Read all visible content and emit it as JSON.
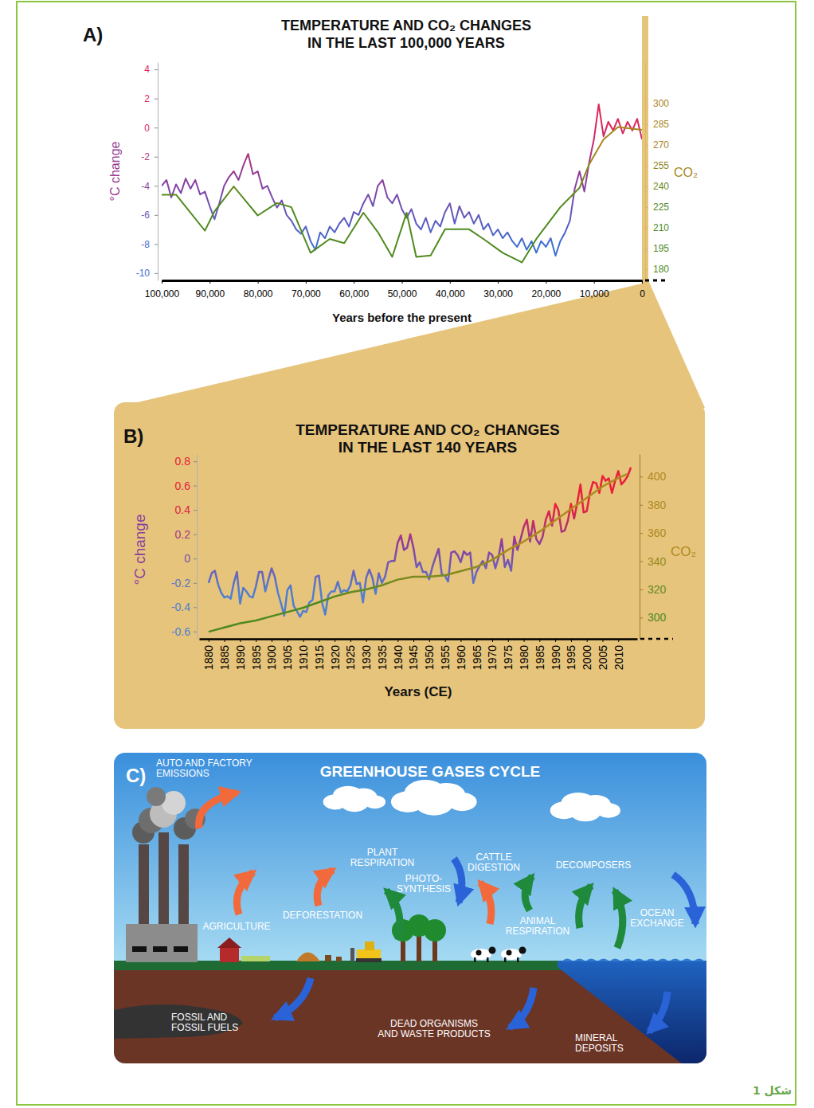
{
  "chart_data": [
    {
      "type": "line",
      "label": "A)",
      "title": "TEMPERATURE AND CO₂ CHANGES IN THE LAST 100,000 YEARS",
      "x_label": "Years before the present",
      "y_label": "°C change",
      "y2_label": "CO₂",
      "xlim": [
        100000,
        0
      ],
      "xticks": [
        {
          "value": 100000,
          "label": "100,000"
        },
        {
          "value": 90000,
          "label": "90,000"
        },
        {
          "value": 80000,
          "label": "80,000"
        },
        {
          "value": 70000,
          "label": "70,000"
        },
        {
          "value": 60000,
          "label": "60,000"
        },
        {
          "value": 50000,
          "label": "50,000"
        },
        {
          "value": 40000,
          "label": "40,000"
        },
        {
          "value": 30000,
          "label": "30,000"
        },
        {
          "value": 20000,
          "label": "20,000"
        },
        {
          "value": 10000,
          "label": "10,000"
        },
        0
      ],
      "ylim": [
        -10.5,
        4.5
      ],
      "yticks": [
        4,
        2,
        0,
        -2,
        -4,
        -6,
        -8,
        -10
      ],
      "y2lim": [
        172,
        330
      ],
      "y2ticks": [
        300,
        285,
        270,
        255,
        240,
        225,
        210,
        195,
        180
      ],
      "series": [
        {
          "color": "#8a3fa0",
          "x": [
            100000,
            99000,
            98000,
            97000,
            96000,
            95000,
            94000,
            93000,
            92000,
            91000,
            90000,
            89000,
            88000,
            87000,
            86000,
            85000,
            84000,
            83000,
            82000,
            81000,
            80000,
            79000,
            78000,
            77000,
            76000,
            75000,
            74000,
            73000,
            72000,
            71000,
            70000,
            69000,
            68000,
            67000,
            66000,
            65000,
            64000,
            63000,
            62000,
            61000,
            60000,
            59000,
            58000,
            57000,
            56000,
            55000,
            54000,
            53000,
            52000,
            51000,
            50000,
            49000,
            48000,
            47000,
            46000,
            45000,
            44000,
            43000,
            42000,
            41000,
            40000,
            39000,
            38000,
            37000,
            36000,
            35000,
            34000,
            33000,
            32000,
            31000,
            30000,
            29000,
            28000,
            27000,
            26000,
            25000,
            24000,
            23000,
            22000,
            21000,
            20000,
            19000,
            18000,
            17000,
            16000,
            15000,
            14000,
            13000,
            12000,
            11000,
            10000,
            9000,
            8000,
            7000,
            6000,
            5000,
            4000,
            3000,
            2000,
            1000,
            0
          ],
          "values": [
            -4.0,
            -3.6,
            -4.8,
            -3.9,
            -4.5,
            -3.5,
            -4.2,
            -3.6,
            -4.6,
            -4.4,
            -5.4,
            -6.3,
            -5.2,
            -4.0,
            -3.4,
            -3.0,
            -3.6,
            -2.6,
            -1.8,
            -3.2,
            -3.0,
            -4.2,
            -4.0,
            -4.8,
            -5.5,
            -5.0,
            -6.0,
            -6.4,
            -7.0,
            -7.3,
            -6.8,
            -7.8,
            -8.4,
            -7.2,
            -7.6,
            -6.8,
            -7.2,
            -6.6,
            -6.2,
            -6.8,
            -5.8,
            -6.0,
            -5.2,
            -4.6,
            -5.4,
            -4.0,
            -3.6,
            -4.8,
            -5.2,
            -4.6,
            -5.6,
            -6.2,
            -5.6,
            -6.6,
            -7.0,
            -6.2,
            -7.2,
            -6.4,
            -6.8,
            -5.8,
            -5.2,
            -6.6,
            -5.4,
            -6.2,
            -5.8,
            -6.6,
            -6.0,
            -7.0,
            -6.6,
            -7.4,
            -7.0,
            -7.6,
            -7.2,
            -7.8,
            -8.2,
            -7.6,
            -8.4,
            -7.8,
            -8.6,
            -7.8,
            -8.2,
            -7.6,
            -8.8,
            -7.8,
            -7.2,
            -6.4,
            -4.2,
            -3.0,
            -4.4,
            -2.4,
            -0.8,
            1.6,
            -0.6,
            0.4,
            -0.2,
            0.6,
            -0.4,
            0.4,
            -0.2,
            0.6,
            -0.8
          ]
        },
        {
          "color": "#4f8a1e",
          "axis": "y2",
          "x": [
            100000,
            97000,
            91000,
            89000,
            85000,
            80000,
            76000,
            73000,
            69000,
            65000,
            62000,
            58000,
            55000,
            52000,
            49000,
            47000,
            44000,
            41000,
            36000,
            33000,
            29000,
            25000,
            22000,
            17000,
            13000,
            11000,
            8000,
            5000,
            0
          ],
          "values": [
            234,
            234,
            208,
            222,
            240,
            219,
            228,
            225,
            192,
            202,
            199,
            221,
            207,
            189,
            221,
            189,
            190,
            209,
            209,
            202,
            192,
            185,
            202,
            225,
            239,
            256,
            274,
            283,
            281
          ]
        }
      ]
    },
    {
      "type": "line",
      "label": "B)",
      "title": "TEMPERATURE AND CO₂ CHANGES IN THE LAST 140 YEARS",
      "x_label": "Years (CE)",
      "y_label": "°C change",
      "y2_label": "CO₂",
      "xlim": [
        1877,
        2016
      ],
      "xticks": [
        1880,
        1885,
        1890,
        1895,
        1900,
        1905,
        1910,
        1915,
        1920,
        1925,
        1930,
        1935,
        1940,
        1945,
        1950,
        1955,
        1960,
        1965,
        1970,
        1975,
        1980,
        1985,
        1990,
        1995,
        2000,
        2005,
        2010
      ],
      "ylim": [
        -0.66,
        0.86
      ],
      "yticks": [
        0.8,
        0.6,
        0.4,
        0.2,
        0,
        -0.2,
        -0.4,
        -0.6
      ],
      "y2lim": [
        285,
        416
      ],
      "y2ticks": [
        400,
        380,
        360,
        340,
        320,
        300
      ],
      "series": [
        {
          "color": "#8a3fa0",
          "x": [
            1880,
            1881,
            1882,
            1883,
            1884,
            1885,
            1886,
            1887,
            1888,
            1889,
            1890,
            1891,
            1892,
            1893,
            1894,
            1895,
            1896,
            1897,
            1898,
            1899,
            1900,
            1901,
            1902,
            1903,
            1904,
            1905,
            1906,
            1907,
            1908,
            1909,
            1910,
            1911,
            1912,
            1913,
            1914,
            1915,
            1916,
            1917,
            1918,
            1919,
            1920,
            1921,
            1922,
            1923,
            1924,
            1925,
            1926,
            1927,
            1928,
            1929,
            1930,
            1931,
            1932,
            1933,
            1934,
            1935,
            1936,
            1937,
            1938,
            1939,
            1940,
            1941,
            1942,
            1943,
            1944,
            1945,
            1946,
            1947,
            1948,
            1949,
            1950,
            1951,
            1952,
            1953,
            1954,
            1955,
            1956,
            1957,
            1958,
            1959,
            1960,
            1961,
            1962,
            1963,
            1964,
            1965,
            1966,
            1967,
            1968,
            1969,
            1970,
            1971,
            1972,
            1973,
            1974,
            1975,
            1976,
            1977,
            1978,
            1979,
            1980,
            1981,
            1982,
            1983,
            1984,
            1985,
            1986,
            1987,
            1988,
            1989,
            1990,
            1991,
            1992,
            1993,
            1994,
            1995,
            1996,
            1997,
            1998,
            1999,
            2000,
            2001,
            2002,
            2003,
            2004,
            2005,
            2006,
            2007,
            2008,
            2009,
            2010,
            2011,
            2012,
            2013,
            2014
          ],
          "values": [
            -0.2,
            -0.12,
            -0.1,
            -0.21,
            -0.28,
            -0.32,
            -0.31,
            -0.33,
            -0.2,
            -0.11,
            -0.37,
            -0.24,
            -0.27,
            -0.31,
            -0.32,
            -0.23,
            -0.11,
            -0.11,
            -0.27,
            -0.17,
            -0.08,
            -0.15,
            -0.28,
            -0.37,
            -0.47,
            -0.26,
            -0.22,
            -0.39,
            -0.43,
            -0.48,
            -0.43,
            -0.44,
            -0.36,
            -0.34,
            -0.15,
            -0.14,
            -0.36,
            -0.46,
            -0.3,
            -0.27,
            -0.27,
            -0.19,
            -0.28,
            -0.26,
            -0.27,
            -0.22,
            -0.1,
            -0.21,
            -0.2,
            -0.36,
            -0.16,
            -0.09,
            -0.16,
            -0.29,
            -0.12,
            -0.2,
            -0.15,
            -0.03,
            -0.02,
            -0.02,
            0.13,
            0.19,
            0.07,
            0.09,
            0.2,
            0.09,
            -0.07,
            -0.03,
            -0.11,
            -0.11,
            -0.17,
            -0.07,
            0.01,
            0.08,
            -0.13,
            -0.14,
            -0.19,
            0.05,
            0.06,
            0.03,
            -0.03,
            0.06,
            0.03,
            0.05,
            -0.2,
            -0.11,
            -0.06,
            -0.02,
            -0.08,
            0.05,
            0.03,
            -0.08,
            0.01,
            0.16,
            -0.07,
            -0.01,
            -0.1,
            0.18,
            0.07,
            0.16,
            0.26,
            0.32,
            0.14,
            0.31,
            0.16,
            0.12,
            0.18,
            0.32,
            0.39,
            0.27,
            0.45,
            0.4,
            0.22,
            0.23,
            0.31,
            0.45,
            0.33,
            0.46,
            0.61,
            0.38,
            0.39,
            0.54,
            0.63,
            0.62,
            0.54,
            0.68,
            0.64,
            0.66,
            0.54,
            0.64,
            0.72,
            0.61,
            0.64,
            0.68,
            0.75
          ]
        },
        {
          "color": "#4f8a1e",
          "axis": "y2",
          "x": [
            1880,
            1885,
            1890,
            1895,
            1900,
            1905,
            1910,
            1915,
            1920,
            1925,
            1930,
            1935,
            1940,
            1945,
            1950,
            1955,
            1960,
            1965,
            1970,
            1975,
            1980,
            1985,
            1990,
            1995,
            2000,
            2005,
            2010,
            2013
          ],
          "values": [
            290,
            293,
            296,
            298,
            301,
            304,
            307,
            311,
            315,
            318,
            320,
            323,
            327,
            329,
            329,
            330,
            333,
            336,
            341,
            348,
            354,
            361,
            369,
            377,
            385,
            393,
            399,
            402
          ]
        }
      ]
    }
  ],
  "diagram": {
    "label": "C)",
    "title": "GREENHOUSE GASES CYCLE",
    "labels": [
      "AUTO AND FACTORY EMISSIONS",
      "AGRICULTURE",
      "DEFORESTATION",
      "PLANT RESPIRATION",
      "PHOTO-SYNTHESIS",
      "CATTLE DIGESTION",
      "ANIMAL RESPIRATION",
      "DECOMPOSERS",
      "OCEAN EXCHANGE",
      "FOSSIL AND FOSSIL FUELS",
      "DEAD ORGANISMS AND WASTE PRODUCTS",
      "MINERAL DEPOSITS"
    ]
  },
  "caption": "شکل 1"
}
